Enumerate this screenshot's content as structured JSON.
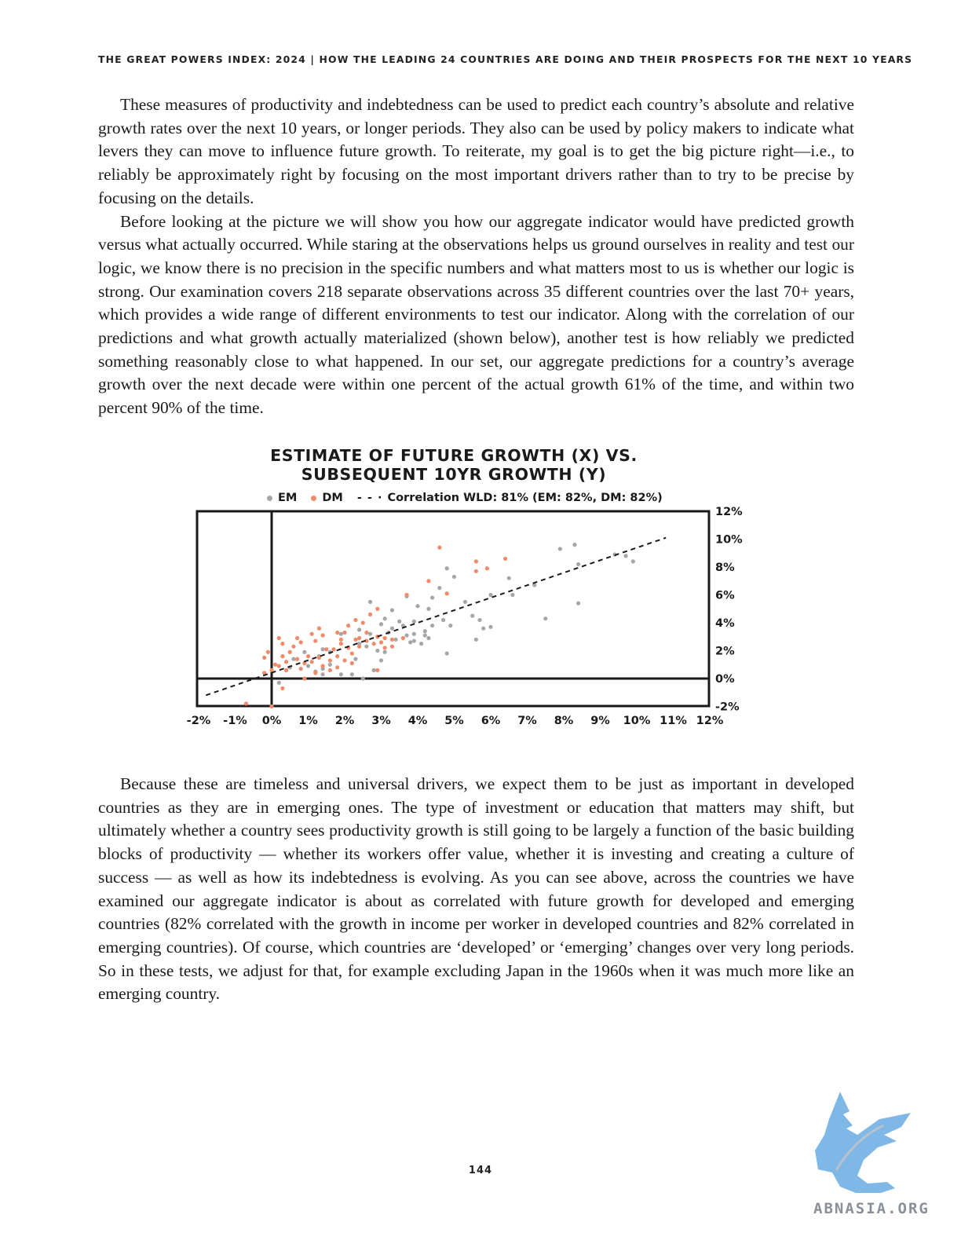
{
  "header": {
    "running_head": "THE GREAT POWERS INDEX: 2024 | HOW THE LEADING 24 COUNTRIES ARE DOING AND THEIR PROSPECTS FOR THE NEXT 10 YEARS"
  },
  "paragraphs_top": [
    "These measures of productivity and indebtedness can be used to predict each country’s absolute and relative growth rates over the next 10 years, or longer periods. They also can be used by policy makers to indicate what levers they can move to influence future growth. To reiterate, my goal is to get the big picture right—i.e., to reliably be approximately right by focusing on the most important drivers rather than to try to be precise by focusing on the details.",
    "Before looking at the picture we will show you how our aggregate indicator would have predicted growth versus what actually occurred. While staring at the observations helps us ground ourselves in reality and test our logic, we know there is no precision in the specific numbers and what matters most to us is whether our logic is strong. Our examination covers 218 separate observations across 35 different countries over the last 70+ years, which provides a wide range of different environments to test our indicator. Along with the correlation of our predictions and what growth actually materialized (shown below), another test is how reliably we predicted something reasonably close to what happened. In our set, our aggregate predictions for a country’s average growth over the next decade were within one percent of the actual growth 61% of the time, and within two percent 90% of the time."
  ],
  "paragraphs_bottom": [
    "Because these are timeless and universal drivers, we expect them to be just as important in developed countries as they are in emerging ones. The type of investment or education that matters may shift, but ultimately whether a country sees productivity growth is still going to be largely a function of the basic building blocks of productivity — whether its workers offer value, whether it is investing and creating a culture of success — as well as how its indebtedness is evolving. As you can see above, across the countries we have examined our aggregate indicator is about as correlated with future growth for developed and emerging countries (82% correlated with the growth in income per worker in developed countries and 82% correlated in emerging countries). Of course, which countries are ‘developed’ or ‘emerging’ changes over very long periods. So in these tests, we adjust for that, for example excluding Japan in the 1960s when it was much more like an emerging country."
  ],
  "page_number": "144",
  "watermark": {
    "text": "ABNASIA.ORG",
    "color": "#7fb8e6"
  },
  "chart_data": {
    "type": "scatter",
    "title_line1": "ESTIMATE OF FUTURE GROWTH (X) VS.",
    "title_line2": "SUBSEQUENT 10YR GROWTH (Y)",
    "legend": {
      "em_label": "EM",
      "dm_label": "DM",
      "line_label": "Correlation WLD: 81% (EM: 82%, DM: 82%)"
    },
    "x_ticks": [
      "-2%",
      "-1%",
      "0%",
      "1%",
      "2%",
      "3%",
      "4%",
      "5%",
      "6%",
      "7%",
      "8%",
      "9%",
      "10%",
      "11%",
      "12%"
    ],
    "y_ticks": [
      "12%",
      "10%",
      "8%",
      "6%",
      "4%",
      "2%",
      "0%",
      "-2%"
    ],
    "xlim": [
      -2,
      12
    ],
    "ylim": [
      -2,
      12
    ],
    "colors": {
      "em": "#a6a6a6",
      "dm": "#f08a68",
      "line": "#1a1a1a",
      "frame": "#1a1a1a"
    },
    "trend_line": {
      "x": [
        -1.8,
        10.8
      ],
      "y": [
        -1.2,
        10.1
      ]
    },
    "series": [
      {
        "name": "EM",
        "points": [
          [
            8.3,
            9.6
          ],
          [
            7.9,
            9.3
          ],
          [
            8.4,
            8.2
          ],
          [
            9.4,
            8.9
          ],
          [
            9.7,
            8.8
          ],
          [
            9.9,
            8.4
          ],
          [
            8.4,
            5.4
          ],
          [
            7.5,
            4.3
          ],
          [
            7.2,
            6.7
          ],
          [
            6.5,
            7.2
          ],
          [
            6.0,
            6.0
          ],
          [
            6.0,
            3.7
          ],
          [
            5.3,
            5.5
          ],
          [
            5.0,
            7.3
          ],
          [
            4.8,
            7.9
          ],
          [
            4.6,
            6.5
          ],
          [
            4.4,
            5.8
          ],
          [
            4.3,
            5.0
          ],
          [
            4.0,
            5.2
          ],
          [
            3.7,
            5.9
          ],
          [
            3.3,
            4.9
          ],
          [
            3.1,
            4.3
          ],
          [
            4.4,
            3.8
          ],
          [
            4.9,
            3.8
          ],
          [
            5.7,
            4.2
          ],
          [
            5.5,
            4.5
          ],
          [
            5.8,
            3.6
          ],
          [
            5.6,
            2.8
          ],
          [
            4.8,
            1.8
          ],
          [
            4.1,
            2.5
          ],
          [
            3.9,
            2.7
          ],
          [
            3.6,
            3.8
          ],
          [
            3.9,
            3.2
          ],
          [
            4.2,
            3.4
          ],
          [
            3.9,
            4.1
          ],
          [
            4.2,
            3.1
          ],
          [
            3.7,
            3.1
          ],
          [
            3.5,
            4.1
          ],
          [
            3.3,
            3.6
          ],
          [
            3.0,
            3.9
          ],
          [
            2.7,
            3.2
          ],
          [
            2.4,
            3.5
          ],
          [
            2.7,
            5.5
          ],
          [
            3.1,
            1.9
          ],
          [
            3.0,
            1.3
          ],
          [
            2.8,
            0.6
          ],
          [
            2.2,
            0.3
          ],
          [
            2.3,
            1.4
          ],
          [
            1.9,
            3.2
          ],
          [
            1.4,
            2.1
          ],
          [
            1.3,
            1.6
          ],
          [
            1.4,
            0.7
          ],
          [
            1.6,
            1.0
          ],
          [
            1.9,
            0.3
          ],
          [
            1.4,
            0.3
          ],
          [
            0.9,
            1.9
          ],
          [
            0.6,
            1.4
          ],
          [
            0.5,
            0.8
          ],
          [
            1.0,
            0.9
          ],
          [
            1.2,
            0.5
          ],
          [
            1.6,
            1.9
          ],
          [
            2.4,
            2.5
          ],
          [
            2.9,
            2.0
          ],
          [
            2.6,
            2.3
          ],
          [
            3.4,
            2.8
          ],
          [
            3.2,
            3.3
          ],
          [
            4.3,
            2.9
          ],
          [
            3.8,
            2.6
          ],
          [
            4.7,
            4.2
          ],
          [
            6.6,
            6.0
          ],
          [
            0.2,
            -0.3
          ],
          [
            2.5,
            0.0
          ]
        ]
      },
      {
        "name": "DM",
        "points": [
          [
            4.6,
            9.4
          ],
          [
            5.6,
            8.4
          ],
          [
            5.6,
            7.7
          ],
          [
            5.9,
            7.9
          ],
          [
            6.4,
            8.6
          ],
          [
            4.3,
            7.0
          ],
          [
            4.8,
            6.1
          ],
          [
            3.7,
            6.0
          ],
          [
            2.9,
            5.0
          ],
          [
            2.5,
            4.0
          ],
          [
            2.7,
            4.6
          ],
          [
            2.3,
            4.2
          ],
          [
            2.1,
            3.8
          ],
          [
            1.8,
            3.3
          ],
          [
            1.3,
            3.6
          ],
          [
            1.1,
            3.2
          ],
          [
            0.7,
            2.9
          ],
          [
            0.3,
            2.5
          ],
          [
            0.2,
            2.9
          ],
          [
            0.5,
            1.9
          ],
          [
            0.3,
            1.6
          ],
          [
            -0.1,
            1.9
          ],
          [
            -0.2,
            1.5
          ],
          [
            0.1,
            1.0
          ],
          [
            0.4,
            0.6
          ],
          [
            0.7,
            1.4
          ],
          [
            0.9,
            1.1
          ],
          [
            1.0,
            1.6
          ],
          [
            1.1,
            1.2
          ],
          [
            1.3,
            1.5
          ],
          [
            1.5,
            2.1
          ],
          [
            1.7,
            2.1
          ],
          [
            1.8,
            1.6
          ],
          [
            1.9,
            2.5
          ],
          [
            2.1,
            2.2
          ],
          [
            2.2,
            1.8
          ],
          [
            2.3,
            2.8
          ],
          [
            2.4,
            2.3
          ],
          [
            2.6,
            2.7
          ],
          [
            2.8,
            2.5
          ],
          [
            3.0,
            2.6
          ],
          [
            3.1,
            2.2
          ],
          [
            3.3,
            2.3
          ],
          [
            2.0,
            1.3
          ],
          [
            1.6,
            1.3
          ],
          [
            1.4,
            0.9
          ],
          [
            1.2,
            0.4
          ],
          [
            0.8,
            0.7
          ],
          [
            1.2,
            2.7
          ],
          [
            0.8,
            2.6
          ],
          [
            0.6,
            2.3
          ],
          [
            0.4,
            1.2
          ],
          [
            1.9,
            2.8
          ],
          [
            2.6,
            3.3
          ],
          [
            2.9,
            3.0
          ],
          [
            3.3,
            2.8
          ],
          [
            3.6,
            2.9
          ],
          [
            2.2,
            1.1
          ],
          [
            1.8,
            0.8
          ],
          [
            1.6,
            0.6
          ],
          [
            2.9,
            0.6
          ],
          [
            0.9,
            0.0
          ],
          [
            0.3,
            -0.7
          ],
          [
            -0.7,
            -1.8
          ],
          [
            0.0,
            -2.0
          ],
          [
            -0.2,
            0.4
          ],
          [
            0.0,
            0.6
          ],
          [
            0.2,
            0.9
          ],
          [
            1.4,
            3.1
          ],
          [
            2.0,
            3.3
          ],
          [
            2.4,
            2.9
          ],
          [
            3.1,
            2.9
          ]
        ]
      }
    ]
  }
}
